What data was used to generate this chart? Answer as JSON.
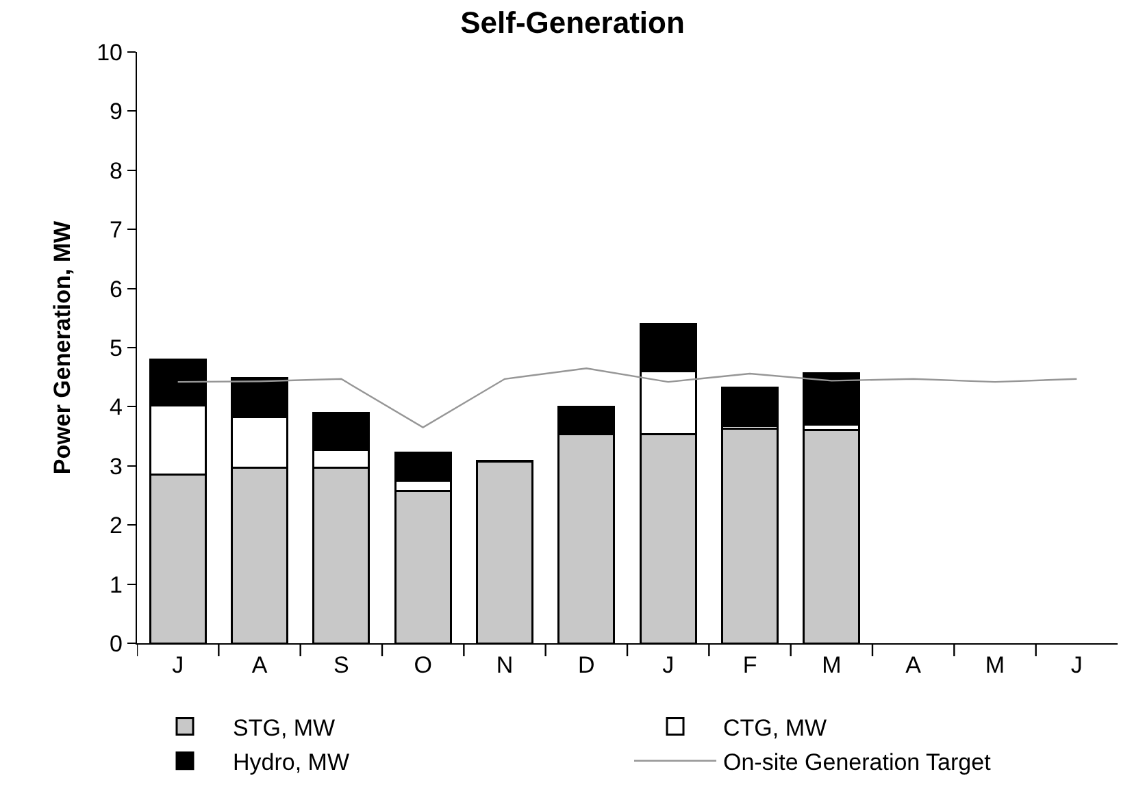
{
  "chart_data": {
    "type": "bar",
    "title": "Self-Generation",
    "ylabel": "Power Generation, MW",
    "categories": [
      "J",
      "A",
      "S",
      "O",
      "N",
      "D",
      "J",
      "F",
      "M",
      "A",
      "M",
      "J"
    ],
    "stacked": true,
    "ylim": [
      0,
      10
    ],
    "yticks": [
      0,
      1,
      2,
      3,
      4,
      5,
      6,
      7,
      8,
      9,
      10
    ],
    "grid": false,
    "legend": "bottom",
    "series": [
      {
        "name": "STG, MW",
        "color": "#c8c8c8",
        "values": [
          2.85,
          2.97,
          2.97,
          2.57,
          3.07,
          3.54,
          3.54,
          3.63,
          3.6,
          null,
          null,
          null
        ]
      },
      {
        "name": "CTG, MW",
        "color": "#ffffff",
        "values": [
          1.17,
          0.86,
          0.3,
          0.18,
          null,
          null,
          1.06,
          0.04,
          0.1,
          null,
          null,
          null
        ]
      },
      {
        "name": "Hydro, MW",
        "color": "#000000",
        "values": [
          0.78,
          0.65,
          0.63,
          0.47,
          0.02,
          0.46,
          0.8,
          0.65,
          0.87,
          null,
          null,
          null
        ]
      },
      {
        "name": "On-site Generation Target",
        "type": "line",
        "color": "#969696",
        "marker": "none",
        "line_style": "solid",
        "values": [
          4.42,
          4.43,
          4.47,
          3.65,
          4.47,
          4.65,
          4.42,
          4.56,
          4.44,
          4.47,
          4.42,
          4.47
        ]
      }
    ]
  }
}
